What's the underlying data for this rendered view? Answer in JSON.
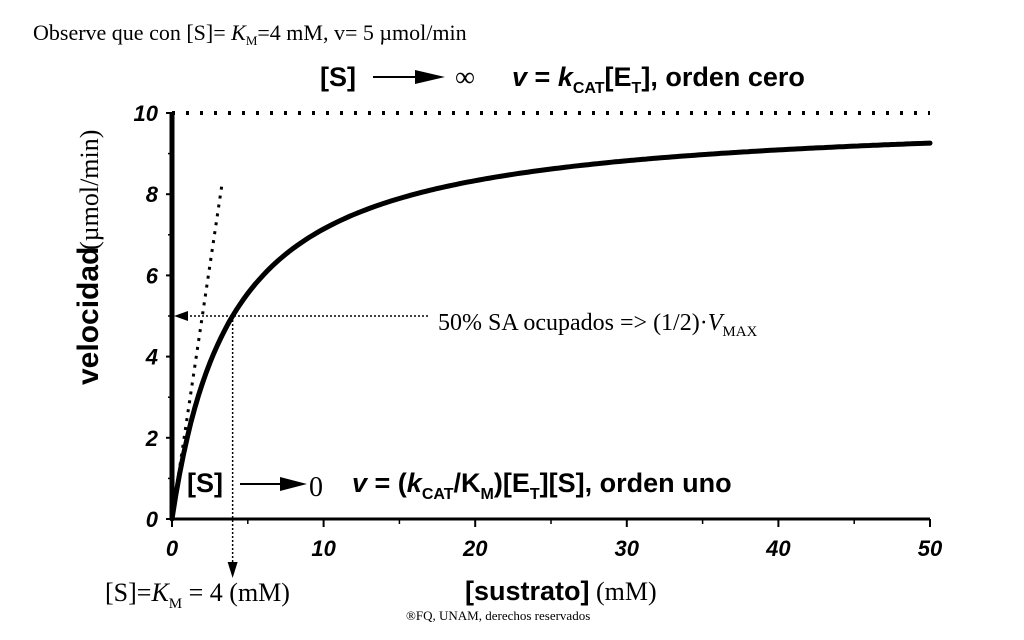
{
  "header": {
    "observation_prefix": "Observe que con [S]= ",
    "observation_k": "K",
    "observation_k_sub": "M",
    "observation_suffix": "=4 mM, v= 5 µmol/min"
  },
  "zero_order_label": {
    "s": "[S]",
    "infinity": "∞",
    "eq_v": "v",
    "eq_equals": " = ",
    "eq_k": "k",
    "eq_k_sub": "CAT",
    "eq_e": "[E",
    "eq_e_sub": "T",
    "eq_tail": "], orden cero"
  },
  "first_order_label": {
    "s": "[S]",
    "zero": "0",
    "eq_v": "v",
    "eq_mid": " = (",
    "eq_k": "k",
    "eq_k_sub": "CAT",
    "eq_km": "/K",
    "eq_km_sub": "M",
    "eq_e": ")[E",
    "eq_e_sub": "T",
    "eq_tail": "][S], orden uno"
  },
  "half_vmax_annotation": {
    "text": "50% SA ocupados => (1/2)·",
    "v": "V",
    "v_sub": "MAX"
  },
  "km_annotation": {
    "prefix": "[S]=",
    "k": "K",
    "k_sub": "M",
    "suffix": " = 4 (mM)"
  },
  "x_axis_label": {
    "main": "[sustrato]",
    "unit": " (mM)"
  },
  "y_axis_label": {
    "main": "velocidad",
    "unit": "(µmol/min)"
  },
  "copyright": "®FQ, UNAM, derechos reservados",
  "chart_data": {
    "type": "line",
    "xlim": [
      0,
      50
    ],
    "ylim": [
      0,
      10
    ],
    "x_ticks": [
      0,
      10,
      20,
      30,
      40,
      50
    ],
    "y_ticks": [
      0,
      2,
      4,
      6,
      8,
      10
    ],
    "vmax": 10,
    "km": 4,
    "half_vmax": 5,
    "initial_slope": 2.5,
    "initial_slope_x_end": 3.3,
    "curve_x": [
      0,
      0.5,
      1,
      2,
      3,
      4,
      5,
      6,
      8,
      10,
      12,
      15,
      18,
      20,
      25,
      30,
      35,
      40,
      45,
      50
    ],
    "curve_y": [
      0,
      1.11,
      2.0,
      3.33,
      4.29,
      5.0,
      5.56,
      6.0,
      6.67,
      7.14,
      7.5,
      7.89,
      8.18,
      8.33,
      8.62,
      8.82,
      8.97,
      9.09,
      9.18,
      9.26
    ],
    "grid": false
  }
}
